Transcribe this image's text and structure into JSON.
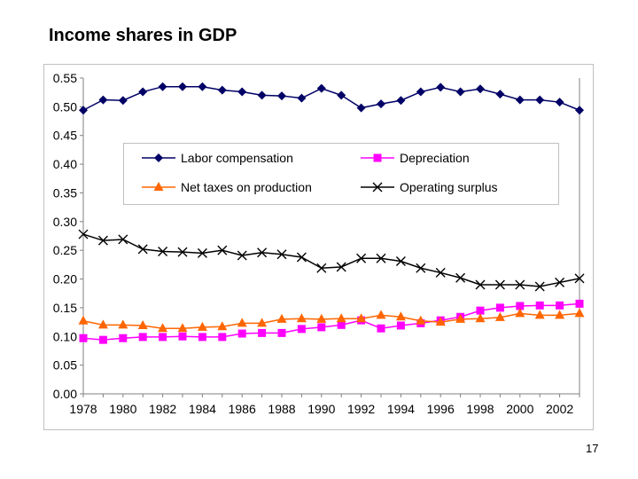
{
  "slide": {
    "title": "Income shares in GDP",
    "page_number": "17"
  },
  "chart_data": {
    "type": "line",
    "title": "",
    "xlabel": "",
    "ylabel": "",
    "x": [
      1978,
      1979,
      1980,
      1981,
      1982,
      1983,
      1984,
      1985,
      1986,
      1987,
      1988,
      1989,
      1990,
      1991,
      1992,
      1993,
      1994,
      1995,
      1996,
      1997,
      1998,
      1999,
      2000,
      2001,
      2002,
      2003
    ],
    "x_tick_labels": [
      "1978",
      "1980",
      "1982",
      "1984",
      "1986",
      "1988",
      "1990",
      "1992",
      "1994",
      "1996",
      "1998",
      "2000",
      "2002"
    ],
    "y_tick_labels": [
      "0.00",
      "0.05",
      "0.10",
      "0.15",
      "0.20",
      "0.25",
      "0.30",
      "0.35",
      "0.40",
      "0.45",
      "0.50",
      "0.55"
    ],
    "ylim": [
      0,
      0.55
    ],
    "grid": false,
    "legend_position": "top-center",
    "series": [
      {
        "name": "Labor compensation",
        "color": "#000066",
        "marker": "diamond",
        "values": [
          0.494,
          0.512,
          0.511,
          0.526,
          0.535,
          0.535,
          0.535,
          0.529,
          0.526,
          0.52,
          0.519,
          0.515,
          0.532,
          0.52,
          0.498,
          0.505,
          0.511,
          0.526,
          0.534,
          0.526,
          0.531,
          0.522,
          0.512,
          0.512,
          0.508,
          0.494
        ]
      },
      {
        "name": "Depreciation",
        "color": "#FF00FF",
        "marker": "square",
        "values": [
          0.097,
          0.094,
          0.097,
          0.099,
          0.099,
          0.1,
          0.099,
          0.099,
          0.105,
          0.106,
          0.106,
          0.113,
          0.116,
          0.12,
          0.128,
          0.114,
          0.119,
          0.123,
          0.128,
          0.134,
          0.145,
          0.15,
          0.153,
          0.154,
          0.154,
          0.157
        ]
      },
      {
        "name": "Net taxes on production",
        "color": "#FF6600",
        "marker": "triangle",
        "values": [
          0.127,
          0.12,
          0.12,
          0.119,
          0.114,
          0.114,
          0.116,
          0.117,
          0.123,
          0.123,
          0.13,
          0.131,
          0.13,
          0.131,
          0.131,
          0.137,
          0.134,
          0.127,
          0.125,
          0.13,
          0.131,
          0.133,
          0.14,
          0.137,
          0.137,
          0.14
        ]
      },
      {
        "name": "Operating surplus",
        "color": "#000000",
        "marker": "x",
        "values": [
          0.278,
          0.267,
          0.269,
          0.252,
          0.248,
          0.247,
          0.245,
          0.25,
          0.241,
          0.246,
          0.243,
          0.238,
          0.219,
          0.221,
          0.236,
          0.236,
          0.231,
          0.219,
          0.211,
          0.202,
          0.19,
          0.19,
          0.19,
          0.187,
          0.194,
          0.201
        ]
      }
    ]
  }
}
